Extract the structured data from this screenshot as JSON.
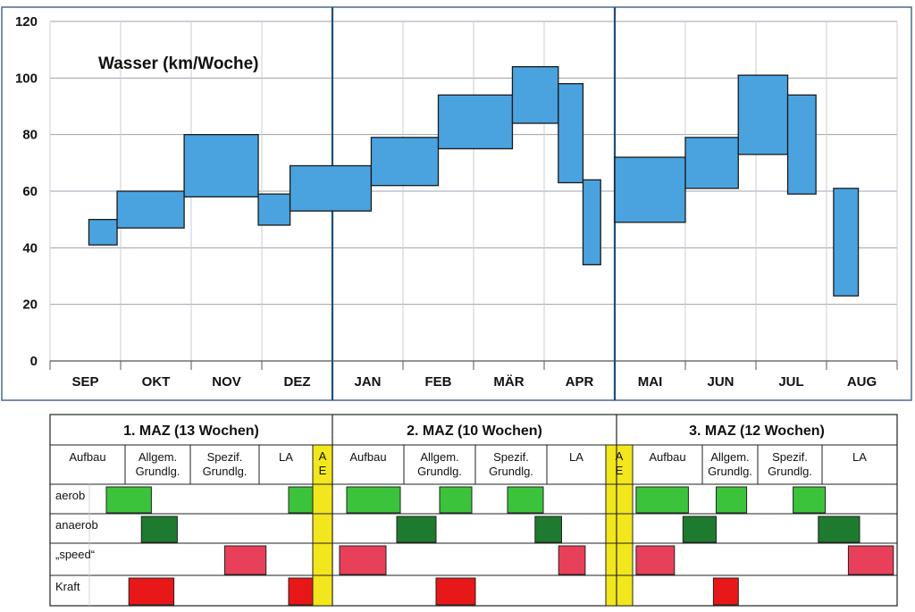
{
  "colors": {
    "bar_fill": "#4aa3df",
    "frame": "#4a6a8c",
    "divider": "#1f4e79",
    "grid": "#9aa3ad",
    "aerob": "#3cc33c",
    "anaerob": "#1e7a2e",
    "speed": "#e8405a",
    "kraft": "#e81818",
    "ae": "#f2e61c"
  },
  "chart_data": {
    "type": "bar",
    "title": "Wasser (km/Woche)",
    "xlabel": "",
    "ylabel": "",
    "ylim": [
      0,
      120
    ],
    "yticks": [
      0,
      20,
      40,
      60,
      80,
      100,
      120
    ],
    "grid": true,
    "categories": [
      "SEP",
      "OKT",
      "NOV",
      "DEZ",
      "JAN",
      "FEB",
      "MÄR",
      "APR",
      "MAI",
      "JUN",
      "JUL",
      "AUG"
    ],
    "phase_dividers_month": [
      4,
      8
    ],
    "ranges": [
      {
        "month_start": 0.55,
        "month_end": 0.95,
        "low": 41,
        "high": 50
      },
      {
        "month_start": 0.95,
        "month_end": 1.9,
        "low": 47,
        "high": 60
      },
      {
        "month_start": 1.9,
        "month_end": 2.95,
        "low": 58,
        "high": 80
      },
      {
        "month_start": 2.95,
        "month_end": 3.4,
        "low": 48,
        "high": 59
      },
      {
        "month_start": 3.4,
        "month_end": 4.55,
        "low": 53,
        "high": 69
      },
      {
        "month_start": 4.55,
        "month_end": 5.5,
        "low": 62,
        "high": 79
      },
      {
        "month_start": 5.5,
        "month_end": 6.55,
        "low": 75,
        "high": 94
      },
      {
        "month_start": 6.55,
        "month_end": 7.2,
        "low": 84,
        "high": 104
      },
      {
        "month_start": 7.2,
        "month_end": 7.55,
        "low": 63,
        "high": 98
      },
      {
        "month_start": 7.55,
        "month_end": 7.8,
        "low": 34,
        "high": 64
      },
      {
        "month_start": 8.0,
        "month_end": 9.0,
        "low": 49,
        "high": 72
      },
      {
        "month_start": 9.0,
        "month_end": 9.75,
        "low": 61,
        "high": 79
      },
      {
        "month_start": 9.75,
        "month_end": 10.45,
        "low": 73,
        "high": 101
      },
      {
        "month_start": 10.45,
        "month_end": 10.85,
        "low": 59,
        "high": 94
      },
      {
        "month_start": 11.1,
        "month_end": 11.45,
        "low": 23,
        "high": 61
      }
    ]
  },
  "table": {
    "phases": [
      {
        "title": "1. MAZ (13 Wochen)",
        "cols": [
          "Aufbau",
          "Allgem.\nGrundlg.",
          "Spezif.\nGrundlg.",
          "LA"
        ]
      },
      {
        "title": "2. MAZ (10 Wochen)",
        "cols": [
          "Aufbau",
          "Allgem.\nGrundlg.",
          "Spezif.\nGrundlg.",
          "LA"
        ]
      },
      {
        "title": "3. MAZ (12 Wochen)",
        "cols": [
          "Aufbau",
          "Allgem.\nGrundlg.",
          "Spezif.\nGrundlg.",
          "LA"
        ]
      }
    ],
    "ae_label": "A\nE",
    "rows": [
      {
        "label": "aerob",
        "color_key": "aerob"
      },
      {
        "label": "anaerob",
        "color_key": "anaerob"
      },
      {
        "label": "„speed“",
        "color_key": "speed"
      },
      {
        "label": "Kraft",
        "color_key": "kraft"
      }
    ],
    "blocks": [
      {
        "row": 0,
        "seg": "p1c1",
        "offset": 0.75,
        "width": 0.6
      },
      {
        "row": 0,
        "seg": "p1c4",
        "offset": 0.55,
        "width": 0.45
      },
      {
        "row": 0,
        "seg": "p2c1",
        "offset": 0.2,
        "width": 0.75
      },
      {
        "row": 0,
        "seg": "p2c2",
        "offset": 0.5,
        "width": 0.45
      },
      {
        "row": 0,
        "seg": "p2c3",
        "offset": 0.45,
        "width": 0.5
      },
      {
        "row": 0,
        "seg": "p3c1",
        "offset": 0.05,
        "width": 0.75
      },
      {
        "row": 0,
        "seg": "p3c2",
        "offset": 0.25,
        "width": 0.55
      },
      {
        "row": 0,
        "seg": "p3c3",
        "offset": 0.55,
        "width": 0.5
      },
      {
        "row": 1,
        "seg": "p1c2",
        "offset": 0.25,
        "width": 0.55
      },
      {
        "row": 1,
        "seg": "p2c2",
        "offset": -0.1,
        "width": 0.55
      },
      {
        "row": 1,
        "seg": "p2c4",
        "offset": -0.2,
        "width": 0.45
      },
      {
        "row": 1,
        "seg": "p3c2",
        "offset": -0.35,
        "width": 0.6
      },
      {
        "row": 1,
        "seg": "p3c4",
        "offset": -0.05,
        "width": 0.55
      },
      {
        "row": 2,
        "seg": "p1c3",
        "offset": 0.5,
        "width": 0.6
      },
      {
        "row": 2,
        "seg": "p2c1",
        "offset": 0.1,
        "width": 0.65
      },
      {
        "row": 2,
        "seg": "p2c4",
        "offset": 0.2,
        "width": 0.45
      },
      {
        "row": 2,
        "seg": "p3c1",
        "offset": 0.05,
        "width": 0.55
      },
      {
        "row": 2,
        "seg": "p3c4",
        "offset": 0.35,
        "width": 0.6
      },
      {
        "row": 3,
        "seg": "p1c1",
        "offset": 1.05,
        "width": 0.6
      },
      {
        "row": 3,
        "seg": "p1c4",
        "offset": 0.55,
        "width": 0.45
      },
      {
        "row": 3,
        "seg": "p2c2",
        "offset": 0.45,
        "width": 0.55
      },
      {
        "row": 3,
        "seg": "p3c2",
        "offset": 0.2,
        "width": 0.45
      }
    ]
  }
}
